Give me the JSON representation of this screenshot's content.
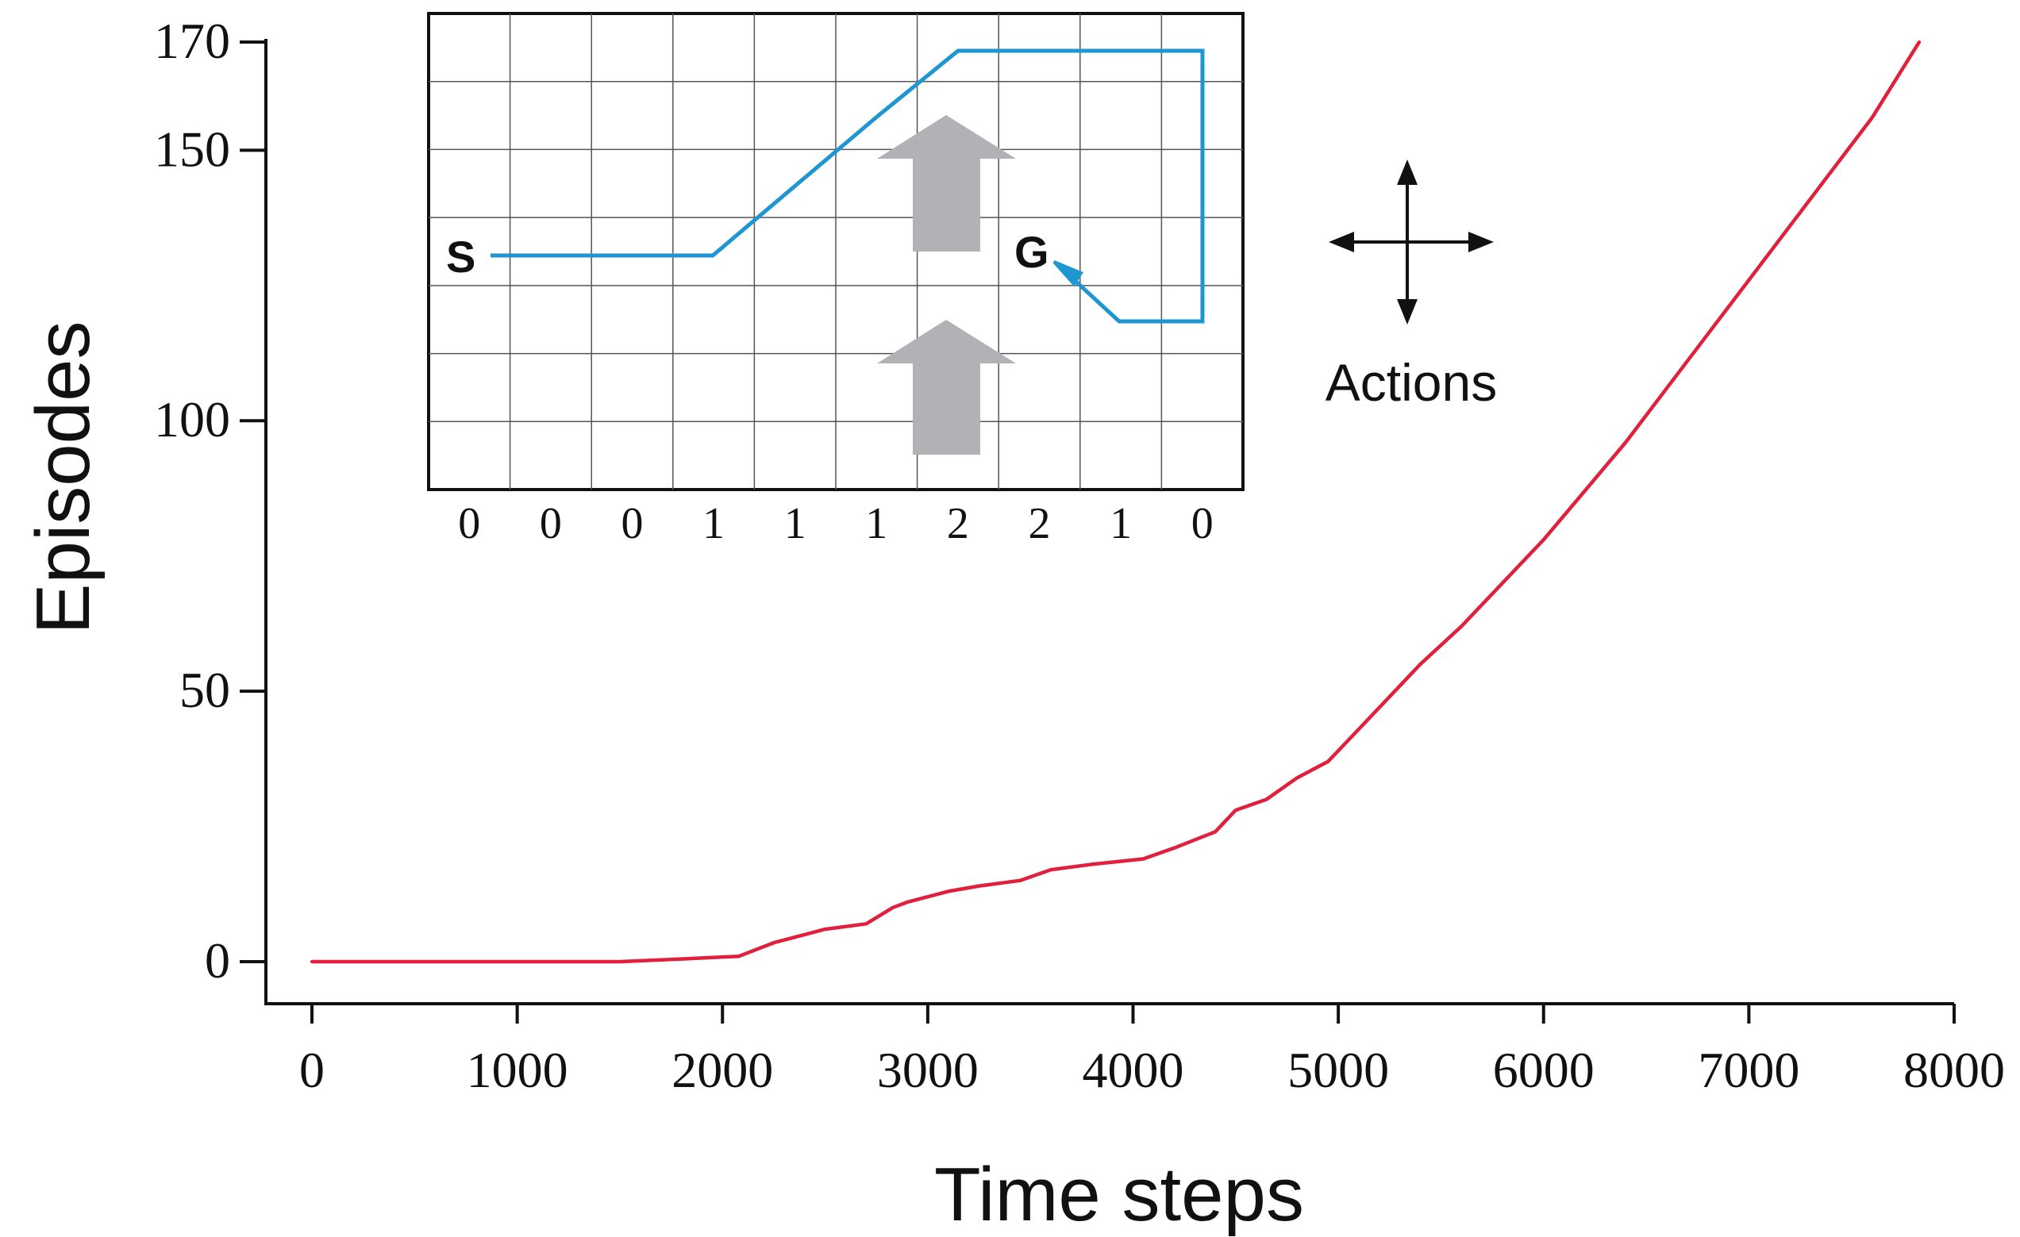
{
  "chart_data": {
    "type": "line",
    "title": "",
    "xlabel": "Time steps",
    "ylabel": "Episodes",
    "xlim": [
      0,
      8000
    ],
    "ylim": [
      0,
      170
    ],
    "x_ticks": [
      "0",
      "1000",
      "2000",
      "3000",
      "4000",
      "5000",
      "6000",
      "7000",
      "8000"
    ],
    "y_ticks": [
      "0",
      "50",
      "100",
      "150",
      "170"
    ],
    "grid": false,
    "series": [
      {
        "color": "#e0203c",
        "x": [
          0,
          500,
          1000,
          1500,
          1800,
          2080,
          2250,
          2400,
          2500,
          2700,
          2830,
          2900,
          3000,
          3100,
          3250,
          3450,
          3600,
          3800,
          4050,
          4200,
          4400,
          4500,
          4650,
          4800,
          4950,
          5050,
          5200,
          5400,
          5600,
          5800,
          6000,
          6200,
          6400,
          6600,
          6800,
          7000,
          7200,
          7400,
          7600,
          7830
        ],
        "y": [
          0,
          0,
          0,
          0,
          0.5,
          1,
          3.5,
          5,
          6,
          7,
          10,
          11,
          12,
          13,
          14,
          15,
          17,
          18,
          19,
          21,
          24,
          28,
          30,
          34,
          37,
          41,
          47,
          55,
          62,
          70,
          78,
          87,
          96,
          106,
          116,
          126,
          136,
          146,
          156,
          170
        ]
      }
    ],
    "inset": {
      "start_label": "S",
      "goal_label": "G",
      "wind_strengths": [
        "0",
        "0",
        "0",
        "1",
        "1",
        "1",
        "2",
        "2",
        "1",
        "0"
      ],
      "path_color": "#1e96d2",
      "wind_arrow_color": "#b2b2b6",
      "actions_label": "Actions"
    }
  }
}
